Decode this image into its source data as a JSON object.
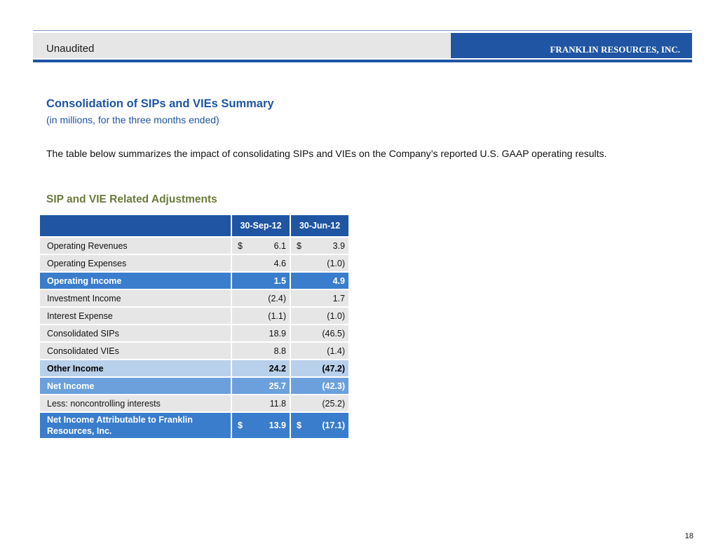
{
  "header": {
    "left_label": "Unaudited",
    "company": "FRANKLIN RESOURCES, INC."
  },
  "title": "Consolidation of SIPs and VIEs Summary",
  "subtitle": "(in millions, for the three months ended)",
  "intro": "The table below summarizes the impact of consolidating SIPs and VIEs on the Company’s reported U.S. GAAP operating results.",
  "section_title": "SIP and VIE Related Adjustments",
  "table": {
    "columns": [
      "30-Sep-12",
      "30-Jun-12"
    ],
    "rows": [
      {
        "label": "Operating Revenues",
        "v1": "6.1",
        "v2": "3.9",
        "cur1": "$",
        "cur2": "$"
      },
      {
        "label": "Operating Expenses",
        "v1": "4.6",
        "v2": "(1.0)"
      },
      {
        "label": "Operating Income",
        "v1": "1.5",
        "v2": "4.9"
      },
      {
        "label": "Investment Income",
        "v1": "(2.4)",
        "v2": "1.7"
      },
      {
        "label": "Interest Expense",
        "v1": "(1.1)",
        "v2": "(1.0)"
      },
      {
        "label": "Consolidated SIPs",
        "v1": "18.9",
        "v2": "(46.5)"
      },
      {
        "label": "Consolidated VIEs",
        "v1": "8.8",
        "v2": "(1.4)"
      },
      {
        "label": "Other Income",
        "v1": "24.2",
        "v2": "(47.2)"
      },
      {
        "label": "Net Income",
        "v1": "25.7",
        "v2": "(42.3)"
      },
      {
        "label": "Less:  noncontrolling interests",
        "v1": "11.8",
        "v2": "(25.2)"
      },
      {
        "label": "Net Income Attributable to Franklin Resources, Inc.",
        "v1": "13.9",
        "v2": "(17.1)",
        "cur1": "$",
        "cur2": "$"
      }
    ]
  },
  "page_number": "18",
  "colors": {
    "brand_blue": "#1f55a3",
    "highlight_blue": "#3a7dcc",
    "light_blue": "#b8d0ea",
    "mid_blue": "#6ba0dc",
    "section_green": "#6b7a3c"
  }
}
